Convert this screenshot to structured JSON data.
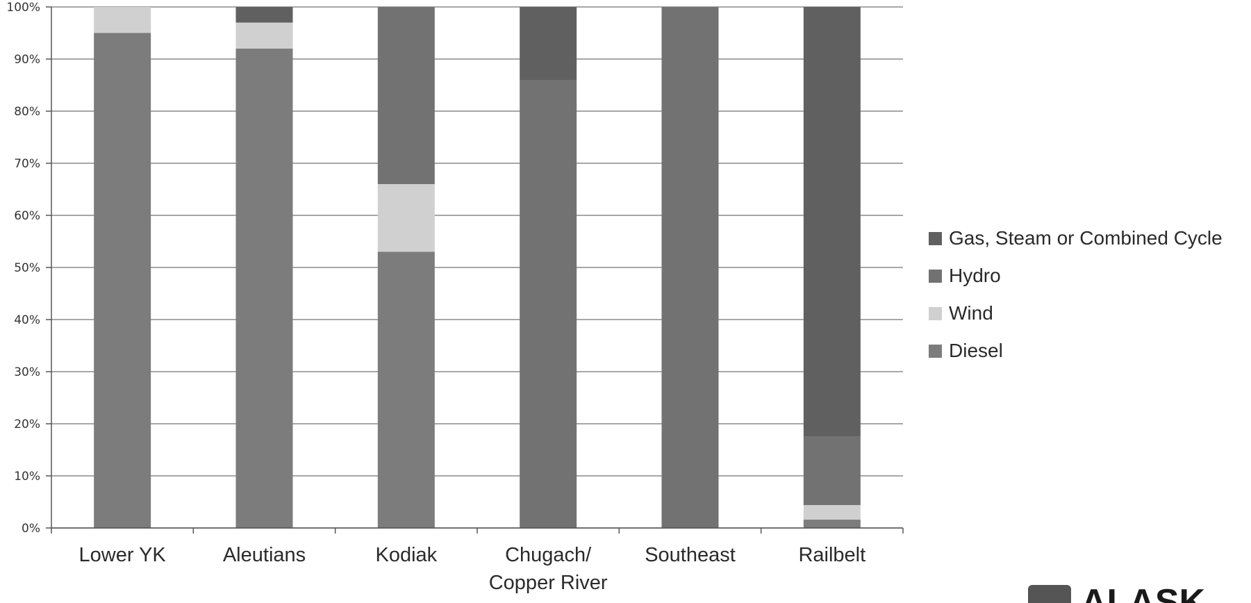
{
  "chart_data": {
    "type": "bar",
    "stacked": true,
    "normalized": true,
    "categories": [
      "Lower YK",
      "Aleutians",
      "Kodiak",
      "Chugach/\nCopper River",
      "Southeast",
      "Railbelt"
    ],
    "series": [
      {
        "name": "Diesel",
        "color": "#7c7c7c",
        "values": [
          95,
          92,
          53,
          0,
          0,
          1.6
        ]
      },
      {
        "name": "Wind",
        "color": "#d0d0d0",
        "values": [
          5,
          5,
          13,
          0,
          0,
          2.8
        ]
      },
      {
        "name": "Hydro",
        "color": "#727272",
        "values": [
          0,
          0,
          34,
          86,
          100,
          13.1
        ]
      },
      {
        "name": "Gas, Steam or Combined Cycle",
        "color": "#606060",
        "values": [
          0,
          3,
          0,
          14,
          0,
          82.5
        ]
      }
    ],
    "legend_order": [
      "Gas, Steam or Combined Cycle",
      "Hydro",
      "Wind",
      "Diesel"
    ],
    "y_ticks": [
      "0%",
      "10%",
      "20%",
      "30%",
      "40%",
      "50%",
      "60%",
      "70%",
      "80%",
      "90%",
      "100%"
    ],
    "ylim": [
      0,
      100
    ],
    "grid": true,
    "legend_position": "right"
  },
  "logo": {
    "text": "ALASK"
  }
}
